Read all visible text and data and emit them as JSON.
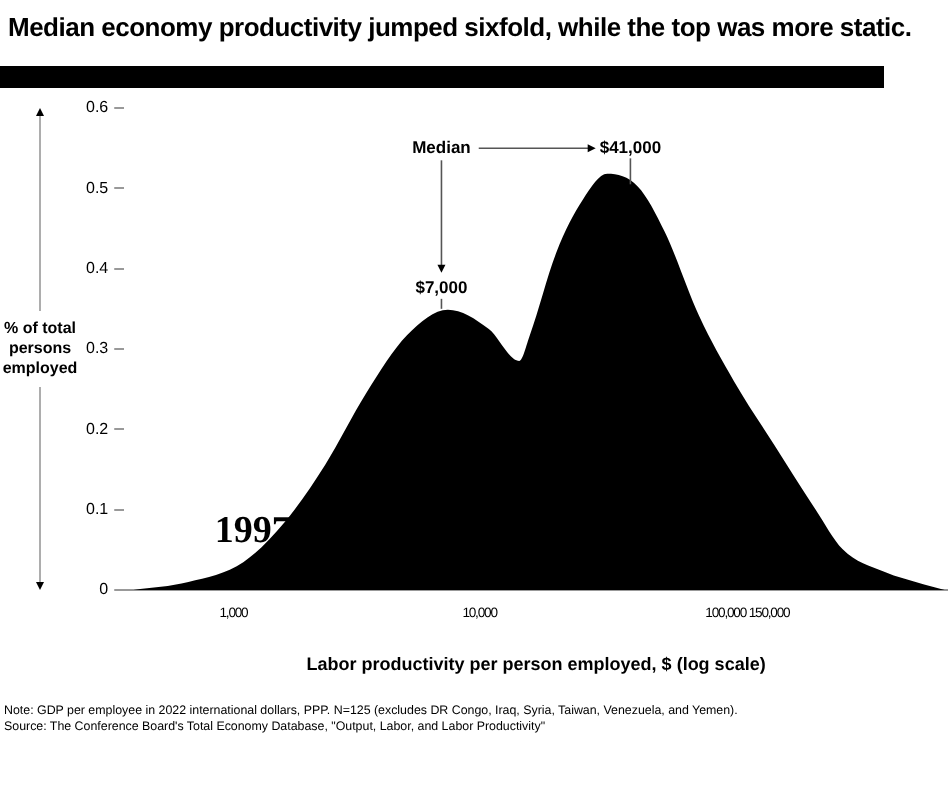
{
  "chart_data": {
    "type": "area",
    "title": "Median economy productivity jumped sixfold, while the top was more static.",
    "xlabel": "Labor productivity per person employed, $ (log scale)",
    "ylabel": "% of total persons employed",
    "x": [
      392,
      656,
      1100,
      1610,
      2360,
      3460,
      5070,
      7430,
      10900,
      14500,
      16000,
      20500,
      26300,
      33000,
      44000,
      56500,
      78000,
      108000,
      158000,
      232000,
      298000,
      438000,
      640000,
      776000
    ],
    "series": [
      {
        "name": "1997",
        "color": "#000000",
        "values": [
          0,
          0.01,
          0.035,
          0.084,
          0.156,
          0.245,
          0.317,
          0.349,
          0.325,
          0.285,
          0.317,
          0.42,
          0.486,
          0.518,
          0.502,
          0.446,
          0.341,
          0.26,
          0.18,
          0.1,
          0.051,
          0.023,
          0.007,
          0
        ]
      }
    ],
    "log": "x",
    "xlim": [
      360,
      800000
    ],
    "xticks": [
      {
        "value": 1000,
        "label": "1,000"
      },
      {
        "value": 10000,
        "label": "10,000"
      },
      {
        "value": 100000,
        "label": "100,000"
      },
      {
        "value": 150000,
        "label": "150,000"
      }
    ],
    "ylim": [
      0,
      0.6
    ],
    "yticks": [
      0,
      0.1,
      0.2,
      0.3,
      0.4,
      0.5,
      0.6
    ],
    "annotations": [
      "Median",
      {
        "text": "$7,000",
        "x": 7000,
        "y": 0.35
      },
      {
        "text": "$41,000",
        "x": 41000,
        "y": 0.505
      },
      "Note: GDP per employee in 2022 international dollars, PPP. N=125 (excludes DR Congo, Iraq, Syria, Taiwan, Venezuela, and Yemen).",
      "Source: The Conference Board's Total Economy Database, \"Output, Labor, and Labor Productivity\""
    ]
  }
}
